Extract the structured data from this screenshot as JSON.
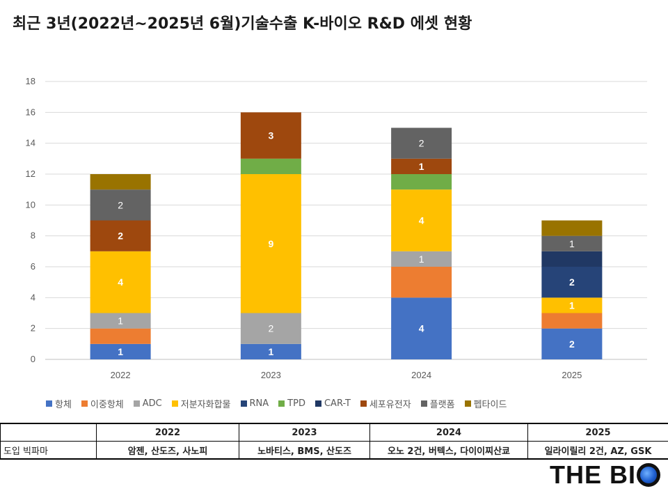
{
  "title": "최근 3년(2022년~2025년 6월)기술수출 K-바이오 R&D 에셋 현황",
  "chart_data": {
    "type": "bar",
    "stacked": true,
    "categories": [
      "2022",
      "2023",
      "2024",
      "2025"
    ],
    "ylim": [
      0,
      18
    ],
    "yticks": [
      0,
      2,
      4,
      6,
      8,
      10,
      12,
      14,
      16,
      18
    ],
    "grid": true,
    "legend_position": "bottom",
    "series": [
      {
        "name": "항체",
        "color": "#4472C4",
        "values": [
          1,
          1,
          4,
          2
        ],
        "labels": [
          "1",
          "1",
          "4",
          "2"
        ]
      },
      {
        "name": "이중항체",
        "color": "#ED7D31",
        "values": [
          1,
          0,
          2,
          1
        ],
        "labels": [
          "",
          "",
          "",
          ""
        ]
      },
      {
        "name": "ADC",
        "color": "#A5A5A5",
        "values": [
          1,
          2,
          1,
          0
        ],
        "labels": [
          "1",
          "2",
          "1",
          ""
        ]
      },
      {
        "name": "저분자화합물",
        "color": "#FFC000",
        "values": [
          4,
          9,
          4,
          1
        ],
        "labels": [
          "4",
          "9",
          "4",
          "1"
        ]
      },
      {
        "name": "RNA",
        "color": "#264478",
        "values": [
          0,
          0,
          0,
          2
        ],
        "labels": [
          "",
          "",
          "",
          "2"
        ]
      },
      {
        "name": "TPD",
        "color": "#70AD47",
        "values": [
          0,
          1,
          1,
          0
        ],
        "labels": [
          "",
          "",
          "",
          ""
        ]
      },
      {
        "name": "CAR-T",
        "color": "#203864",
        "values": [
          0,
          0,
          0,
          1
        ],
        "labels": [
          "",
          "",
          "",
          ""
        ]
      },
      {
        "name": "세포유전자",
        "color": "#9E480E",
        "values": [
          2,
          3,
          1,
          0
        ],
        "labels": [
          "2",
          "3",
          "1",
          ""
        ]
      },
      {
        "name": "플랫폼",
        "color": "#636363",
        "values": [
          2,
          0,
          2,
          1
        ],
        "labels": [
          "2",
          "",
          "2",
          "1"
        ]
      },
      {
        "name": "펩타이드",
        "color": "#997300",
        "values": [
          1,
          0,
          0,
          1
        ],
        "labels": [
          "",
          "",
          "",
          ""
        ]
      }
    ]
  },
  "table": {
    "headers": [
      "",
      "2022",
      "2023",
      "2024",
      "2025"
    ],
    "row_label": "도입 빅파마",
    "cells": [
      "암젠, 산도즈, 사노피",
      "노바티스, BMS, 산도즈",
      "오노 2건, 버텍스, 다이이찌산쿄",
      "일라이릴리 2건, AZ, GSK"
    ]
  },
  "logo": {
    "text": "THE BI",
    "mark_letter": "O"
  }
}
